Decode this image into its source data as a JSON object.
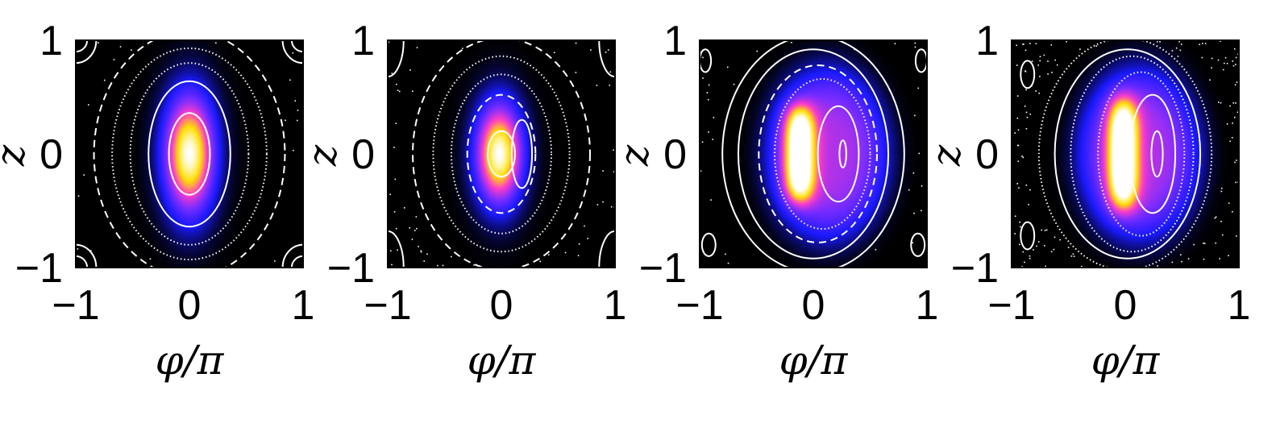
{
  "chart_data": [
    {
      "type": "heatmap",
      "panel": 1,
      "xlabel": "φ/π",
      "ylabel": "z",
      "xlim": [
        -1,
        1
      ],
      "ylim": [
        -1,
        1
      ],
      "xticks": [
        "−1",
        "0",
        "1"
      ],
      "yticks": [
        "1",
        "0",
        "−1"
      ],
      "colormap": [
        "#000000",
        "#1a1aff",
        "#7a2cff",
        "#ff3cc8",
        "#ffe000",
        "#ffffff"
      ],
      "density": {
        "center": [
          0,
          0
        ],
        "spread": [
          0.14,
          0.33
        ],
        "crescent": false,
        "peak": 1.0
      },
      "orbits": [
        {
          "center": [
            0,
            0
          ],
          "radii": [
            0.18,
            0.36
          ],
          "style": "solid"
        },
        {
          "center": [
            0,
            0
          ],
          "radii": [
            0.36,
            0.64
          ],
          "style": "solid"
        },
        {
          "center": [
            0,
            0
          ],
          "radii": [
            0.52,
            0.8
          ],
          "style": "dotted"
        },
        {
          "center": [
            0,
            0
          ],
          "radii": [
            0.68,
            0.93
          ],
          "style": "dotted"
        },
        {
          "center": [
            0,
            0
          ],
          "radii": [
            0.84,
            1.08
          ],
          "style": "dashed"
        },
        {
          "center": [
            -1,
            1
          ],
          "radii": [
            0.1,
            0.1
          ],
          "style": "solid"
        },
        {
          "center": [
            -1,
            1
          ],
          "radii": [
            0.18,
            0.2
          ],
          "style": "solid"
        },
        {
          "center": [
            1,
            1
          ],
          "radii": [
            0.1,
            0.1
          ],
          "style": "solid"
        },
        {
          "center": [
            1,
            1
          ],
          "radii": [
            0.18,
            0.2
          ],
          "style": "solid"
        },
        {
          "center": [
            -1,
            -1
          ],
          "radii": [
            0.1,
            0.1
          ],
          "style": "solid"
        },
        {
          "center": [
            -1,
            -1
          ],
          "radii": [
            0.18,
            0.2
          ],
          "style": "solid"
        },
        {
          "center": [
            1,
            -1
          ],
          "radii": [
            0.1,
            0.1
          ],
          "style": "solid"
        },
        {
          "center": [
            1,
            -1
          ],
          "radii": [
            0.18,
            0.2
          ],
          "style": "solid"
        }
      ],
      "scatter": 0.05
    },
    {
      "type": "heatmap",
      "panel": 2,
      "xlabel": "φ/π",
      "ylabel": "z",
      "xlim": [
        -1,
        1
      ],
      "ylim": [
        -1,
        1
      ],
      "xticks": [
        "−1",
        "0",
        "1"
      ],
      "yticks": [
        "1",
        "0",
        "−1"
      ],
      "colormap": [
        "#000000",
        "#1a1aff",
        "#7a2cff",
        "#ff3cc8",
        "#ffe000",
        "#ffffff"
      ],
      "density": {
        "center": [
          -0.02,
          0
        ],
        "spread": [
          0.13,
          0.28
        ],
        "crescent": false,
        "peak": 1.0
      },
      "orbits": [
        {
          "center": [
            0,
            0
          ],
          "radii": [
            0.12,
            0.2
          ],
          "style": "solid"
        },
        {
          "center": [
            0.18,
            0
          ],
          "radii": [
            0.09,
            0.3
          ],
          "style": "solid"
        },
        {
          "center": [
            0,
            0
          ],
          "radii": [
            0.3,
            0.52
          ],
          "style": "dashed"
        },
        {
          "center": [
            0,
            0
          ],
          "radii": [
            0.44,
            0.7
          ],
          "style": "dotted"
        },
        {
          "center": [
            0,
            0
          ],
          "radii": [
            0.6,
            0.86
          ],
          "style": "dotted"
        },
        {
          "center": [
            0,
            0
          ],
          "radii": [
            0.78,
            1.02
          ],
          "style": "dashed"
        },
        {
          "center": [
            -1,
            1
          ],
          "radii": [
            0.14,
            0.32
          ],
          "style": "solid"
        },
        {
          "center": [
            1,
            1
          ],
          "radii": [
            0.14,
            0.32
          ],
          "style": "solid"
        },
        {
          "center": [
            -1,
            -1
          ],
          "radii": [
            0.14,
            0.32
          ],
          "style": "solid"
        },
        {
          "center": [
            1,
            -1
          ],
          "radii": [
            0.14,
            0.32
          ],
          "style": "solid"
        }
      ],
      "scatter": 0.12
    },
    {
      "type": "heatmap",
      "panel": 3,
      "xlabel": "φ/π",
      "ylabel": "z",
      "xlim": [
        -1,
        1
      ],
      "ylim": [
        -1,
        1
      ],
      "xticks": [
        "−1",
        "0",
        "1"
      ],
      "yticks": [
        "1",
        "0",
        "−1"
      ],
      "colormap": [
        "#000000",
        "#1a1aff",
        "#7a2cff",
        "#ff3cc8",
        "#ffe000",
        "#ffffff"
      ],
      "density": {
        "center": [
          -0.12,
          0
        ],
        "spread": [
          0.09,
          0.4
        ],
        "crescent": true,
        "peak": 1.0
      },
      "orbits": [
        {
          "center": [
            0.26,
            0
          ],
          "radii": [
            0.03,
            0.12
          ],
          "style": "solid"
        },
        {
          "center": [
            0.22,
            0
          ],
          "radii": [
            0.18,
            0.42
          ],
          "style": "solid"
        },
        {
          "center": [
            0.08,
            0
          ],
          "radii": [
            0.42,
            0.66
          ],
          "style": "dotted"
        },
        {
          "center": [
            0.04,
            0
          ],
          "radii": [
            0.52,
            0.78
          ],
          "style": "dashed"
        },
        {
          "center": [
            0,
            0
          ],
          "radii": [
            0.66,
            0.92
          ],
          "style": "solid"
        },
        {
          "center": [
            0,
            0
          ],
          "radii": [
            0.8,
            1.04
          ],
          "style": "solid"
        },
        {
          "center": [
            -0.95,
            0.82
          ],
          "radii": [
            0.05,
            0.1
          ],
          "style": "solid"
        },
        {
          "center": [
            0.95,
            0.82
          ],
          "radii": [
            0.05,
            0.1
          ],
          "style": "solid"
        },
        {
          "center": [
            -0.92,
            -0.8
          ],
          "radii": [
            0.06,
            0.1
          ],
          "style": "solid"
        },
        {
          "center": [
            0.92,
            -0.8
          ],
          "radii": [
            0.06,
            0.1
          ],
          "style": "solid"
        }
      ],
      "scatter": 0.06
    },
    {
      "type": "heatmap",
      "panel": 4,
      "xlabel": "φ/π",
      "ylabel": "z",
      "xlim": [
        -1,
        1
      ],
      "ylim": [
        -1,
        1
      ],
      "xticks": [
        "−1",
        "0",
        "1"
      ],
      "yticks": [
        "1",
        "0",
        "−1"
      ],
      "colormap": [
        "#000000",
        "#1a1aff",
        "#7a2cff",
        "#ff3cc8",
        "#ffe000",
        "#ffffff"
      ],
      "density": {
        "center": [
          -0.02,
          0
        ],
        "spread": [
          0.09,
          0.46
        ],
        "crescent": true,
        "peak": 1.0
      },
      "orbits": [
        {
          "center": [
            0.28,
            0
          ],
          "radii": [
            0.05,
            0.2
          ],
          "style": "solid"
        },
        {
          "center": [
            0.24,
            0
          ],
          "radii": [
            0.2,
            0.52
          ],
          "style": "solid"
        },
        {
          "center": [
            0.14,
            0
          ],
          "radii": [
            0.38,
            0.72
          ],
          "style": "dotted"
        },
        {
          "center": [
            0.06,
            0
          ],
          "radii": [
            0.54,
            0.86
          ],
          "style": "dotted"
        },
        {
          "center": [
            0.02,
            0
          ],
          "radii": [
            0.64,
            0.92
          ],
          "style": "solid"
        },
        {
          "center": [
            0,
            0
          ],
          "radii": [
            0.76,
            1.02
          ],
          "style": "dotted"
        },
        {
          "center": [
            -0.86,
            0.7
          ],
          "radii": [
            0.06,
            0.12
          ],
          "style": "solid"
        },
        {
          "center": [
            -0.86,
            -0.72
          ],
          "radii": [
            0.06,
            0.12
          ],
          "style": "solid"
        }
      ],
      "scatter": 0.3
    }
  ]
}
